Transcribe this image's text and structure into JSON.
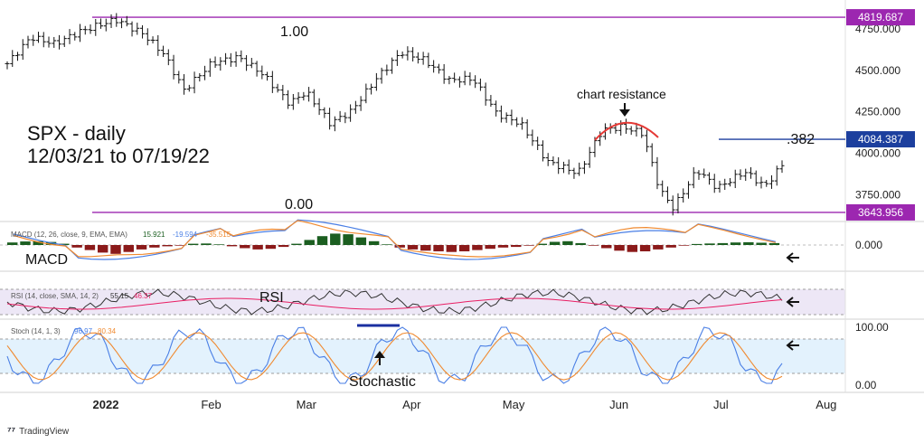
{
  "chart_data": {
    "type": "candlestick",
    "instrument_label": "SPX - daily",
    "date_range_label": "12/03/21 to 07/19/22",
    "date_range": [
      "2021-12-03",
      "2022-07-19"
    ],
    "price_axis": {
      "ticks": [
        "4750.000",
        "4500.000",
        "4250.000",
        "4000.000",
        "3750.000"
      ],
      "tick_values": [
        4750,
        4500,
        4250,
        4000,
        3750
      ],
      "ylim": [
        3600,
        4880
      ]
    },
    "month_labels": [
      "2022",
      "Feb",
      "Mar",
      "Apr",
      "May",
      "Jun",
      "Jul",
      "Aug"
    ],
    "price_series": [
      {
        "date": "2021-12-03",
        "value": 4540
      },
      {
        "date": "2021-12-10",
        "value": 4700
      },
      {
        "date": "2021-12-17",
        "value": 4660
      },
      {
        "date": "2021-12-24",
        "value": 4730
      },
      {
        "date": "2021-12-31",
        "value": 4780
      },
      {
        "date": "2022-01-04",
        "value": 4805
      },
      {
        "date": "2022-01-12",
        "value": 4720
      },
      {
        "date": "2022-01-18",
        "value": 4600
      },
      {
        "date": "2022-01-24",
        "value": 4380
      },
      {
        "date": "2022-02-01",
        "value": 4540
      },
      {
        "date": "2022-02-09",
        "value": 4580
      },
      {
        "date": "2022-02-16",
        "value": 4480
      },
      {
        "date": "2022-02-24",
        "value": 4300
      },
      {
        "date": "2022-03-01",
        "value": 4370
      },
      {
        "date": "2022-03-08",
        "value": 4180
      },
      {
        "date": "2022-03-14",
        "value": 4250
      },
      {
        "date": "2022-03-22",
        "value": 4460
      },
      {
        "date": "2022-03-29",
        "value": 4610
      },
      {
        "date": "2022-04-05",
        "value": 4560
      },
      {
        "date": "2022-04-12",
        "value": 4440
      },
      {
        "date": "2022-04-19",
        "value": 4450
      },
      {
        "date": "2022-04-26",
        "value": 4240
      },
      {
        "date": "2022-05-03",
        "value": 4180
      },
      {
        "date": "2022-05-11",
        "value": 3950
      },
      {
        "date": "2022-05-20",
        "value": 3880
      },
      {
        "date": "2022-05-27",
        "value": 4140
      },
      {
        "date": "2022-06-02",
        "value": 4160
      },
      {
        "date": "2022-06-08",
        "value": 4120
      },
      {
        "date": "2022-06-13",
        "value": 3780
      },
      {
        "date": "2022-06-17",
        "value": 3670
      },
      {
        "date": "2022-06-24",
        "value": 3900
      },
      {
        "date": "2022-06-30",
        "value": 3790
      },
      {
        "date": "2022-07-08",
        "value": 3890
      },
      {
        "date": "2022-07-14",
        "value": 3800
      },
      {
        "date": "2022-07-19",
        "value": 3930
      }
    ],
    "fib_levels": [
      {
        "ratio_label": "1.00",
        "value": 4819.687,
        "value_label": "4819.687",
        "color": "#9c27b0"
      },
      {
        "ratio_label": ".382",
        "value": 4084.387,
        "value_label": "4084.387",
        "color": "#1c3f9e"
      },
      {
        "ratio_label": "0.00",
        "value": 3643.956,
        "value_label": "3643.956",
        "color": "#9c27b0"
      }
    ],
    "annotations": {
      "chart_resistance": "chart resistance",
      "macd": "MACD",
      "rsi": "RSI",
      "stochastic": "Stochastic"
    },
    "macd": {
      "header": "MACD (12, 26, close, 9, EMA, EMA)",
      "values": [
        "15.921",
        "-19.594",
        "-35.515"
      ],
      "axis_tick": "0.000",
      "histogram": [
        20,
        28,
        30,
        24,
        10,
        -20,
        -40,
        -60,
        -70,
        -55,
        -35,
        -20,
        -10,
        -5,
        10,
        12,
        5,
        -10,
        -25,
        -35,
        -30,
        -15,
        10,
        40,
        70,
        90,
        85,
        60,
        30,
        5,
        -20,
        -35,
        -45,
        -50,
        -55,
        -50,
        -40,
        -30,
        -20,
        -15,
        -5,
        10,
        25,
        30,
        15,
        -5,
        -25,
        -45,
        -55,
        -50,
        -35,
        -20,
        -5,
        8,
        12,
        15,
        20,
        22,
        18,
        15
      ],
      "colors": {
        "up": "#1b5e20",
        "down": "#8b1a1a",
        "macd": "#4a7fe5",
        "signal": "#f08a30"
      }
    },
    "rsi": {
      "header": "RSI (14, close, SMA, 14, 2)",
      "values": [
        "55.15",
        "46.37"
      ],
      "colors": {
        "rsi": "#333333",
        "ma": "#e91e63",
        "band": "#ede7f6"
      }
    },
    "stochastic": {
      "header": "Stoch (14, 1, 3)",
      "values": [
        "96.97",
        "80.34"
      ],
      "axis_ticks": [
        "100.00",
        "0.00"
      ],
      "colors": {
        "k": "#4a7fe5",
        "d": "#f08a30",
        "band": "#e3f2fd",
        "top_line": "#1a2fa0"
      }
    },
    "branding": "TradingView"
  }
}
